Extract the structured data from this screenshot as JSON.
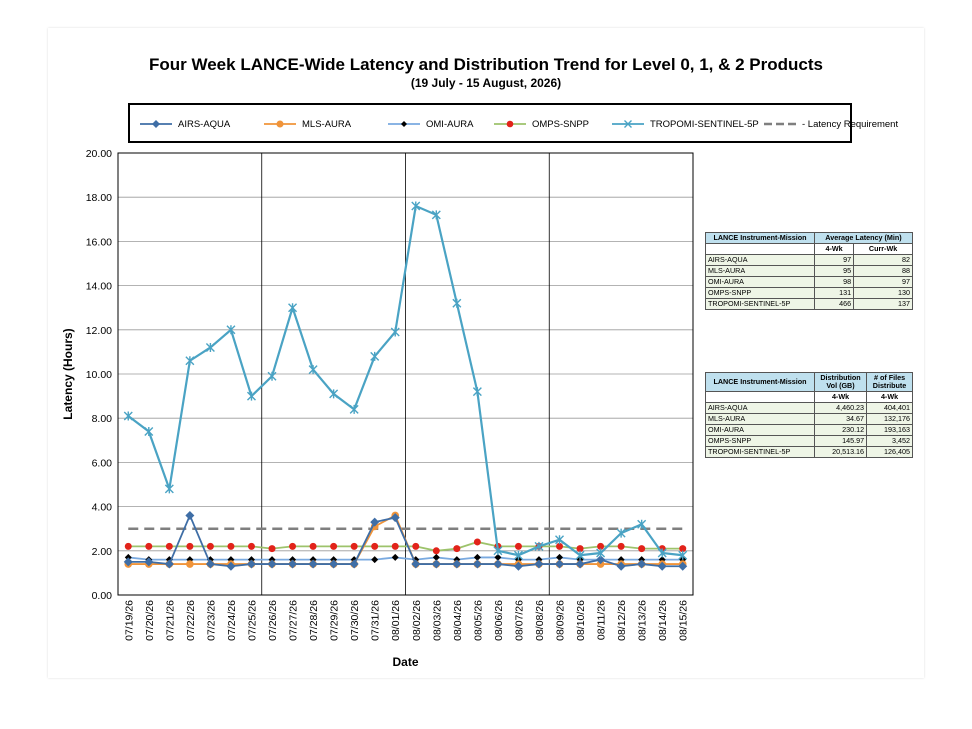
{
  "chart_data": {
    "type": "line",
    "title": "Four Week LANCE-Wide Latency and Distribution Trend for Level 0, 1, & 2 Products",
    "subtitle": "(19  July   -  15  August,  2026)",
    "xlabel": "Date",
    "ylabel": "Latency (Hours)",
    "ylim": [
      0,
      20
    ],
    "yticks": [
      "0.00",
      "2.00",
      "4.00",
      "6.00",
      "8.00",
      "10.00",
      "12.00",
      "14.00",
      "16.00",
      "18.00",
      "20.00"
    ],
    "grid": true,
    "legend_position": "top",
    "categories": [
      "07/19/26",
      "07/20/26",
      "07/21/26",
      "07/22/26",
      "07/23/26",
      "07/24/26",
      "07/25/26",
      "07/26/26",
      "07/27/26",
      "07/28/26",
      "07/29/26",
      "07/30/26",
      "07/31/26",
      "08/01/26",
      "08/02/26",
      "08/03/26",
      "08/04/26",
      "08/05/26",
      "08/06/26",
      "08/07/26",
      "08/08/26",
      "08/09/26",
      "08/10/26",
      "08/11/26",
      "08/12/26",
      "08/13/26",
      "08/14/26",
      "08/15/26"
    ],
    "series": [
      {
        "name": "AIRS-AQUA",
        "color": "#3f6ea6",
        "marker": "diamond",
        "values": [
          1.5,
          1.5,
          1.4,
          3.6,
          1.4,
          1.3,
          1.4,
          1.4,
          1.4,
          1.4,
          1.4,
          1.4,
          3.3,
          3.5,
          1.4,
          1.4,
          1.4,
          1.4,
          1.4,
          1.3,
          1.4,
          1.4,
          1.4,
          1.6,
          1.3,
          1.4,
          1.3,
          1.3
        ]
      },
      {
        "name": "MLS-AURA",
        "color": "#f0943a",
        "marker": "circle",
        "values": [
          1.4,
          1.4,
          1.4,
          1.4,
          1.4,
          1.4,
          1.4,
          1.4,
          1.4,
          1.4,
          1.4,
          1.4,
          3.1,
          3.6,
          1.4,
          1.4,
          1.4,
          1.4,
          1.4,
          1.4,
          1.4,
          1.4,
          1.4,
          1.4,
          1.4,
          1.4,
          1.4,
          1.4
        ]
      },
      {
        "name": "OMI-AURA",
        "color": "#7aaae0",
        "marker": "smalldiamond",
        "values": [
          1.7,
          1.6,
          1.6,
          1.6,
          1.6,
          1.6,
          1.6,
          1.6,
          1.6,
          1.6,
          1.6,
          1.6,
          1.6,
          1.7,
          1.6,
          1.7,
          1.6,
          1.7,
          1.7,
          1.6,
          1.6,
          1.7,
          1.6,
          1.6,
          1.6,
          1.6,
          1.6,
          1.6
        ]
      },
      {
        "name": "OMPS-SNPP",
        "color": "#9dc36b",
        "marker": "reddot",
        "values": [
          2.2,
          2.2,
          2.2,
          2.2,
          2.2,
          2.2,
          2.2,
          2.1,
          2.2,
          2.2,
          2.2,
          2.2,
          2.2,
          2.2,
          2.2,
          2.0,
          2.1,
          2.4,
          2.2,
          2.2,
          2.2,
          2.2,
          2.1,
          2.2,
          2.2,
          2.1,
          2.1,
          2.1
        ]
      },
      {
        "name": "TROPOMI-SENTINEL-5P",
        "color": "#4aa3c4",
        "marker": "x",
        "values": [
          8.1,
          7.4,
          4.8,
          10.6,
          11.2,
          12.0,
          9.0,
          9.9,
          13.0,
          10.2,
          9.1,
          8.4,
          10.8,
          11.9,
          17.6,
          17.2,
          13.2,
          9.2,
          2.0,
          1.8,
          2.2,
          2.5,
          1.8,
          1.9,
          2.8,
          3.2,
          1.9,
          1.8
        ]
      },
      {
        "name": "Latency Requirement",
        "color": "#7f7f7f",
        "marker": "dash",
        "values": [
          3,
          3,
          3,
          3,
          3,
          3,
          3,
          3,
          3,
          3,
          3,
          3,
          3,
          3,
          3,
          3,
          3,
          3,
          3,
          3,
          3,
          3,
          3,
          3,
          3,
          3,
          3,
          3
        ]
      }
    ]
  },
  "tables": {
    "latency": {
      "header1": "LANCE Instrument-Mission",
      "header2": "Average Latency (Min)",
      "col_a": "4-Wk",
      "col_b": "Curr-Wk",
      "rows": [
        {
          "name": "AIRS-AQUA",
          "a": "97",
          "b": "82"
        },
        {
          "name": "MLS-AURA",
          "a": "95",
          "b": "88"
        },
        {
          "name": "OMI-AURA",
          "a": "98",
          "b": "97"
        },
        {
          "name": "OMPS-SNPP",
          "a": "131",
          "b": "130"
        },
        {
          "name": "TROPOMI-SENTINEL-5P",
          "a": "466",
          "b": "137"
        }
      ]
    },
    "distribution": {
      "header1": "LANCE Instrument-Mission",
      "header2": "Distribution Vol (GB)",
      "header3": "# of Files Distribute",
      "col_a": "4-Wk",
      "col_b": "4-Wk",
      "rows": [
        {
          "name": "AIRS-AQUA",
          "a": "4,460.23",
          "b": "404,401"
        },
        {
          "name": "MLS-AURA",
          "a": "34.67",
          "b": "132,176"
        },
        {
          "name": "OMI-AURA",
          "a": "230.12",
          "b": "193,163"
        },
        {
          "name": "OMPS-SNPP",
          "a": "145.97",
          "b": "3,452"
        },
        {
          "name": "TROPOMI-SENTINEL-5P",
          "a": "20,513.16",
          "b": "126,405"
        }
      ]
    }
  }
}
